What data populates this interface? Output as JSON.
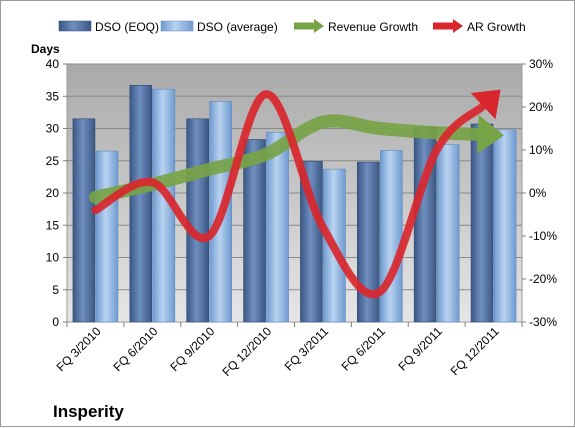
{
  "chart_data": {
    "type": "bar",
    "title": "Insperity",
    "ylabel": "Days",
    "y2label": "",
    "categories": [
      "FQ 3/2010",
      "FQ 6/2010",
      "FQ 9/2010",
      "FQ 12/2010",
      "FQ 3/2011",
      "FQ 6/2011",
      "FQ 9/2011",
      "FQ 12/2011"
    ],
    "ylim": [
      0,
      40
    ],
    "yticks": [
      0,
      5,
      10,
      15,
      20,
      25,
      30,
      35,
      40
    ],
    "y2lim": [
      -30,
      30
    ],
    "y2ticks": [
      "-30%",
      "-20%",
      "-10%",
      "0%",
      "10%",
      "20%",
      "30%"
    ],
    "y2tick_values": [
      -30,
      -20,
      -10,
      0,
      10,
      20,
      30
    ],
    "series": [
      {
        "name": "DSO (EOQ)",
        "kind": "bar",
        "axis": "left",
        "values": [
          31.5,
          36.7,
          31.5,
          28.3,
          24.9,
          24.8,
          30.2,
          30.7
        ]
      },
      {
        "name": "DSO (average)",
        "kind": "bar",
        "axis": "left",
        "values": [
          26.5,
          36.1,
          34.2,
          29.4,
          23.7,
          26.6,
          27.5,
          29.8
        ]
      },
      {
        "name": "Revenue Growth",
        "kind": "line",
        "axis": "right",
        "values": [
          -1,
          2,
          5.5,
          9,
          16.5,
          15,
          14,
          13.5
        ]
      },
      {
        "name": "AR Growth",
        "kind": "line",
        "axis": "right",
        "values": [
          -4,
          2.5,
          -10,
          23,
          -8,
          -23,
          10,
          22.5
        ]
      }
    ],
    "colors": {
      "bar_eoq": "#4f6fa0",
      "bar_avg": "#8eb4e3",
      "revenue_growth": "#77a347",
      "ar_growth": "#d9262d",
      "plot_background": "#c0c0c0"
    },
    "grid": true,
    "legend_position": "top"
  }
}
